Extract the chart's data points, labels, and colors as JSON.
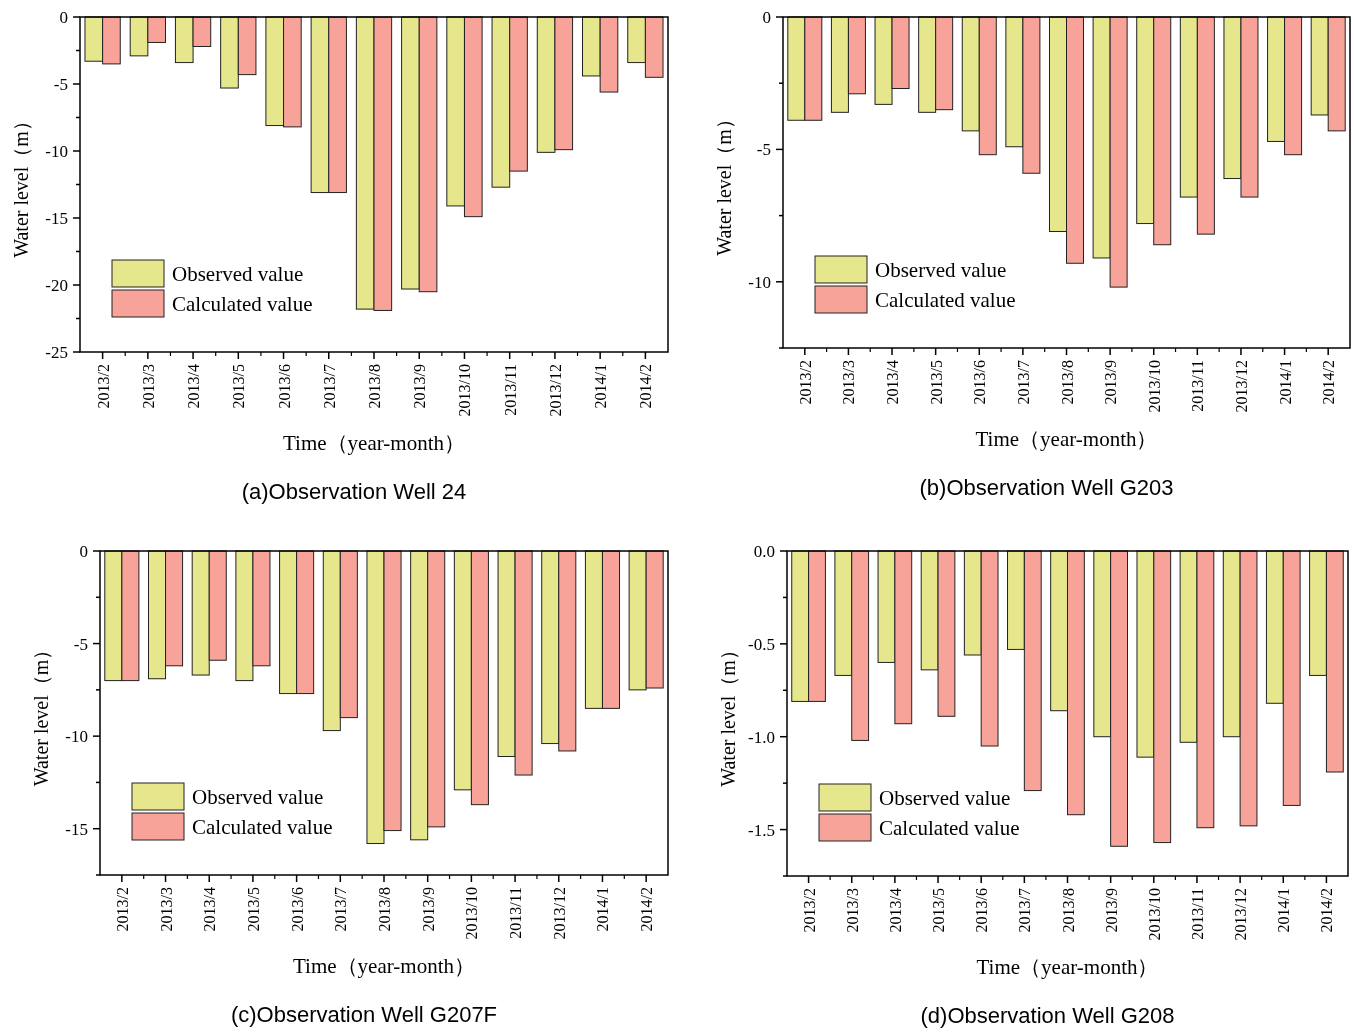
{
  "chart_data": [
    {
      "type": "bar",
      "title": "(a)Observation Well 24",
      "xlabel": "Time（year-month）",
      "ylabel": "Water level（m）",
      "categories": [
        "2013/2",
        "2013/3",
        "2013/4",
        "2013/5",
        "2013/6",
        "2013/7",
        "2013/8",
        "2013/9",
        "2013/10",
        "2013/11",
        "2013/12",
        "2014/1",
        "2014/2"
      ],
      "series": [
        {
          "name": "Observed value",
          "color": "#e6e68c",
          "values": [
            -3.3,
            -2.9,
            -3.4,
            -5.3,
            -8.1,
            -13.1,
            -21.8,
            -20.3,
            -14.1,
            -12.7,
            -10.1,
            -4.4,
            -3.4
          ]
        },
        {
          "name": "Calculated value",
          "color": "#f8a39a",
          "values": [
            -3.5,
            -1.9,
            -2.2,
            -4.3,
            -8.2,
            -13.1,
            -21.9,
            -20.5,
            -14.9,
            -11.5,
            -9.9,
            -5.6,
            -4.5
          ]
        }
      ],
      "ylim": [
        -25,
        0
      ],
      "yticks": [
        0,
        {
          "value": -2.5,
          "label": null
        },
        -5,
        {
          "value": -7.5,
          "label": null
        },
        -10,
        {
          "value": -12.5,
          "label": null
        },
        -15,
        {
          "value": -17.5,
          "label": null
        },
        -20,
        {
          "value": -22.5,
          "label": null
        },
        -25
      ],
      "legend": "bottom left"
    },
    {
      "type": "bar",
      "title": "(b)Observation Well G203",
      "xlabel": "Time（year-month）",
      "ylabel": "Water level（m）",
      "categories": [
        "2013/2",
        "2013/3",
        "2013/4",
        "2013/5",
        "2013/6",
        "2013/7",
        "2013/8",
        "2013/9",
        "2013/10",
        "2013/11",
        "2013/12",
        "2014/1",
        "2014/2"
      ],
      "series": [
        {
          "name": "Observed value",
          "color": "#e6e68c",
          "values": [
            -3.9,
            -3.6,
            -3.3,
            -3.6,
            -4.3,
            -4.9,
            -8.1,
            -9.1,
            -7.8,
            -6.8,
            -6.1,
            -4.7,
            -3.7
          ]
        },
        {
          "name": "Calculated value",
          "color": "#f8a39a",
          "values": [
            -3.9,
            -2.9,
            -2.7,
            -3.5,
            -5.2,
            -5.9,
            -9.3,
            -10.2,
            -8.6,
            -8.2,
            -6.8,
            -5.2,
            -4.3
          ]
        }
      ],
      "ylim": [
        -12.5,
        0
      ],
      "yticks": [
        0,
        {
          "value": -2.5,
          "label": null
        },
        -5,
        {
          "value": -7.5,
          "label": null
        },
        -10,
        {
          "value": -12.5,
          "label": null
        }
      ],
      "legend": "bottom left"
    },
    {
      "type": "bar",
      "title": "(c)Observation Well G207F",
      "xlabel": "Time（year-month）",
      "ylabel": "Water level（m）",
      "categories": [
        "2013/2",
        "2013/3",
        "2013/4",
        "2013/5",
        "2013/6",
        "2013/7",
        "2013/8",
        "2013/9",
        "2013/10",
        "2013/11",
        "2013/12",
        "2014/1",
        "2014/2"
      ],
      "series": [
        {
          "name": "Observed value",
          "color": "#e6e68c",
          "values": [
            -7.0,
            -6.9,
            -6.7,
            -7.0,
            -7.7,
            -9.7,
            -15.8,
            -15.6,
            -12.9,
            -11.1,
            -10.4,
            -8.5,
            -7.5
          ]
        },
        {
          "name": "Calculated value",
          "color": "#f8a39a",
          "values": [
            -7.0,
            -6.2,
            -5.9,
            -6.2,
            -7.7,
            -9.0,
            -15.1,
            -14.9,
            -13.7,
            -12.1,
            -10.8,
            -8.5,
            -7.4
          ]
        }
      ],
      "ylim": [
        -17.5,
        0
      ],
      "yticks": [
        0,
        {
          "value": -2.5,
          "label": null
        },
        -5,
        {
          "value": -7.5,
          "label": null
        },
        -10,
        {
          "value": -12.5,
          "label": null
        },
        -15,
        {
          "value": -17.5,
          "label": null
        }
      ],
      "legend": "bottom left"
    },
    {
      "type": "bar",
      "title": "(d)Observation Well G208",
      "xlabel": "Time（year-month）",
      "ylabel": "Water level（m）",
      "categories": [
        "2013/2",
        "2013/3",
        "2013/4",
        "2013/5",
        "2013/6",
        "2013/7",
        "2013/8",
        "2013/9",
        "2013/10",
        "2013/11",
        "2013/12",
        "2014/1",
        "2014/2"
      ],
      "series": [
        {
          "name": "Observed value",
          "color": "#e6e68c",
          "values": [
            -0.81,
            -0.67,
            -0.6,
            -0.64,
            -0.56,
            -0.53,
            -0.86,
            -1.0,
            -1.11,
            -1.03,
            -1.0,
            -0.82,
            -0.67
          ]
        },
        {
          "name": "Calculated value",
          "color": "#f8a39a",
          "values": [
            -0.81,
            -1.02,
            -0.93,
            -0.89,
            -1.05,
            -1.29,
            -1.42,
            -1.59,
            -1.57,
            -1.49,
            -1.48,
            -1.37,
            -1.19
          ]
        }
      ],
      "ylim": [
        -1.75,
        0
      ],
      "yticks": [
        {
          "value": 0,
          "label": "0.0"
        },
        {
          "value": -0.25,
          "label": null
        },
        {
          "value": -0.5,
          "label": "-0.5"
        },
        {
          "value": -0.75,
          "label": null
        },
        {
          "value": -1.0,
          "label": "-1.0"
        },
        {
          "value": -1.25,
          "label": null
        },
        {
          "value": -1.5,
          "label": "-1.5"
        },
        {
          "value": -1.75,
          "label": null
        }
      ],
      "legend": "bottom left"
    }
  ]
}
